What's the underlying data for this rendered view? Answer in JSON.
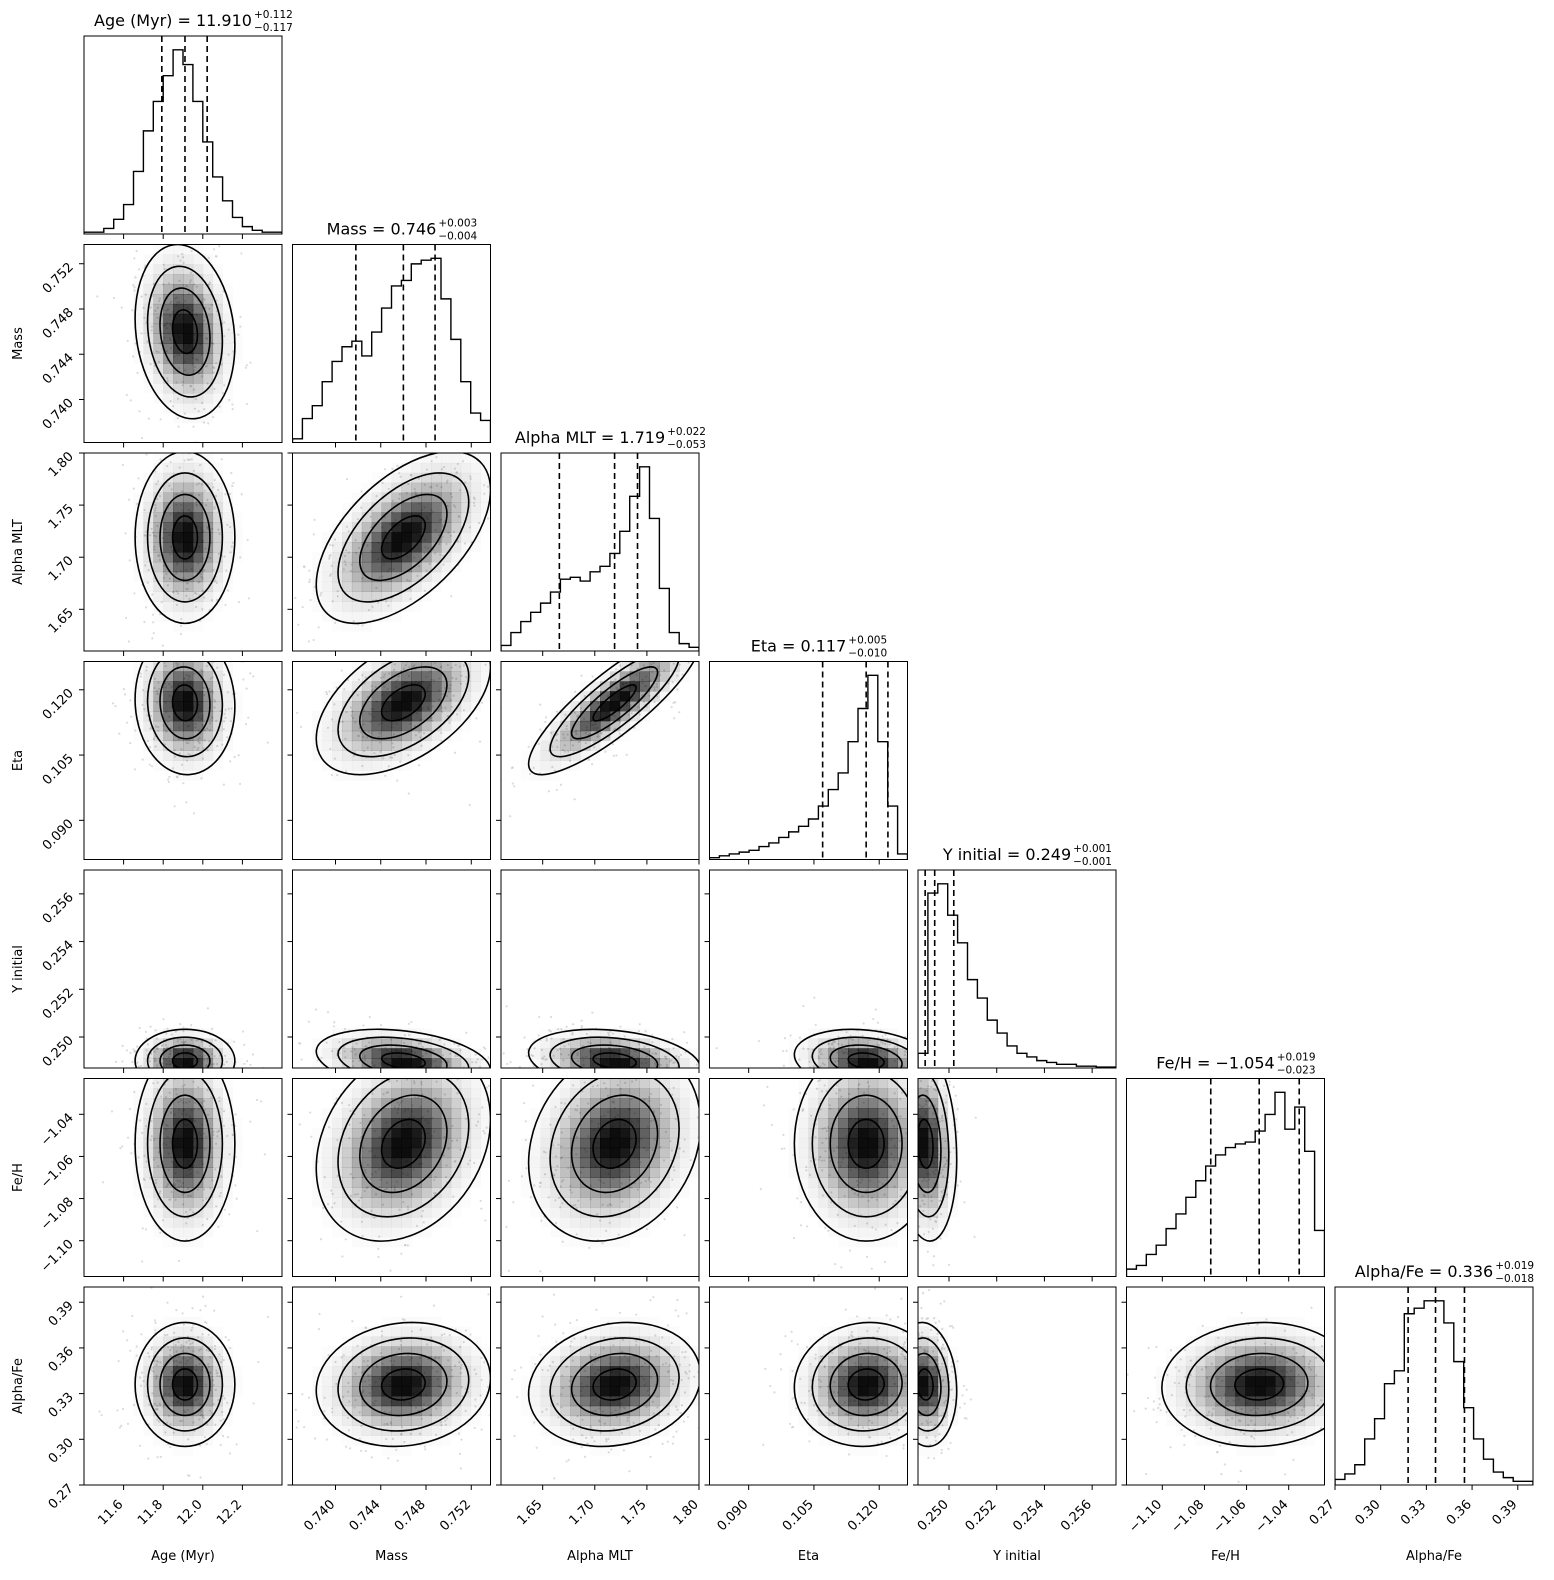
{
  "chart_data": {
    "type": "corner",
    "parameters": [
      {
        "name": "Age (Myr)",
        "range": [
          11.4,
          12.4
        ],
        "ticks": [
          11.6,
          11.8,
          12.0,
          12.2
        ],
        "tick_labels": [
          "11.6",
          "11.8",
          "12.0",
          "12.2"
        ],
        "median": 11.91,
        "quantiles": [
          11.793,
          11.91,
          12.022
        ],
        "title_prefix": "Age (Myr) = 11.910",
        "plus": "+0.112",
        "minus": "−0.117",
        "hist": [
          0.01,
          0.01,
          0.03,
          0.08,
          0.16,
          0.34,
          0.56,
          0.72,
          0.86,
          1.0,
          0.92,
          0.72,
          0.5,
          0.31,
          0.18,
          0.09,
          0.04,
          0.02,
          0.01,
          0.01
        ]
      },
      {
        "name": "Mass",
        "range": [
          0.7362,
          0.7537
        ],
        "ticks": [
          0.736,
          0.74,
          0.744,
          0.748,
          0.752
        ],
        "tick_labels": [
          "0.736",
          "0.740",
          "0.744",
          "0.748",
          "0.752"
        ],
        "median": 0.746,
        "quantiles": [
          0.7418,
          0.746,
          0.7488
        ],
        "title_prefix": "Mass = 0.746",
        "plus": "+0.003",
        "minus": "−0.004",
        "hist": [
          0.02,
          0.13,
          0.2,
          0.33,
          0.44,
          0.52,
          0.55,
          0.47,
          0.6,
          0.73,
          0.85,
          0.88,
          0.97,
          0.99,
          1.0,
          0.78,
          0.56,
          0.33,
          0.16,
          0.12
        ]
      },
      {
        "name": "Alpha MLT",
        "range": [
          1.61,
          1.8
        ],
        "ticks": [
          1.65,
          1.7,
          1.75,
          1.8
        ],
        "tick_labels": [
          "1.65",
          "1.70",
          "1.75",
          "1.80"
        ],
        "median": 1.719,
        "quantiles": [
          1.666,
          1.719,
          1.741
        ],
        "title_prefix": "Alpha MLT = 1.719",
        "plus": "+0.022",
        "minus": "−0.053",
        "hist": [
          0.03,
          0.1,
          0.16,
          0.21,
          0.26,
          0.32,
          0.39,
          0.4,
          0.38,
          0.43,
          0.46,
          0.53,
          0.65,
          0.84,
          1.0,
          0.72,
          0.34,
          0.1,
          0.04,
          0.02
        ]
      },
      {
        "name": "Eta",
        "range": [
          0.081,
          0.1265
        ],
        "ticks": [
          0.09,
          0.105,
          0.12
        ],
        "tick_labels": [
          "0.090",
          "0.105",
          "0.120"
        ],
        "median": 0.117,
        "quantiles": [
          0.107,
          0.117,
          0.122
        ],
        "title_prefix": "Eta = 0.117",
        "plus": "+0.005",
        "minus": "−0.010",
        "hist": [
          0.01,
          0.02,
          0.03,
          0.04,
          0.05,
          0.07,
          0.09,
          0.12,
          0.15,
          0.18,
          0.22,
          0.29,
          0.38,
          0.47,
          0.64,
          0.82,
          1.0,
          0.64,
          0.29,
          0.03
        ]
      },
      {
        "name": "Y initial",
        "range": [
          0.2487,
          0.257
        ],
        "ticks": [
          0.25,
          0.252,
          0.254,
          0.256
        ],
        "tick_labels": [
          "0.250",
          "0.252",
          "0.254",
          "0.256"
        ],
        "median": 0.249,
        "quantiles": [
          0.249,
          0.2494,
          0.2502
        ],
        "title_prefix": "Y initial = 0.249",
        "plus": "+0.001",
        "minus": "−0.001",
        "hist": [
          0.08,
          0.95,
          1.0,
          0.83,
          0.68,
          0.48,
          0.38,
          0.26,
          0.19,
          0.12,
          0.08,
          0.06,
          0.04,
          0.03,
          0.02,
          0.02,
          0.01,
          0.01,
          0.005,
          0.005
        ]
      },
      {
        "name": "Fe/H",
        "range": [
          -1.117,
          -1.023
        ],
        "ticks": [
          -1.1,
          -1.08,
          -1.06,
          -1.04
        ],
        "tick_labels": [
          "−1.10",
          "−1.08",
          "−1.06",
          "−1.04"
        ],
        "median": -1.054,
        "quantiles": [
          -1.077,
          -1.054,
          -1.035
        ],
        "title_prefix": "Fe/H = −1.054",
        "plus": "+0.019",
        "minus": "−0.023",
        "hist": [
          0.04,
          0.06,
          0.12,
          0.17,
          0.26,
          0.34,
          0.43,
          0.52,
          0.6,
          0.66,
          0.7,
          0.72,
          0.73,
          0.79,
          0.88,
          1.0,
          0.8,
          0.92,
          0.68,
          0.25
        ]
      },
      {
        "name": "Alpha/Fe",
        "range": [
          0.27,
          0.4
        ],
        "ticks": [
          0.27,
          0.3,
          0.33,
          0.36,
          0.39
        ],
        "tick_labels": [
          "0.27",
          "0.30",
          "0.33",
          "0.36",
          "0.39"
        ],
        "median": 0.336,
        "quantiles": [
          0.318,
          0.336,
          0.355
        ],
        "title_prefix": "Alpha/Fe = 0.336",
        "plus": "+0.019",
        "minus": "−0.018",
        "hist": [
          0.03,
          0.06,
          0.11,
          0.25,
          0.36,
          0.55,
          0.62,
          0.93,
          0.96,
          1.0,
          1.0,
          0.88,
          0.67,
          0.42,
          0.25,
          0.14,
          0.07,
          0.04,
          0.02,
          0.02
        ]
      }
    ],
    "correlations": {
      "1_0": -0.15,
      "2_0": 0.0,
      "2_1": 0.55,
      "3_0": -0.05,
      "3_1": 0.5,
      "3_2": 0.85,
      "4_0": 0.0,
      "4_1": -0.3,
      "4_2": -0.25,
      "4_3": -0.2,
      "5_0": 0.0,
      "5_1": 0.25,
      "5_2": 0.2,
      "5_3": 0.0,
      "5_4": -0.15,
      "6_0": 0.0,
      "6_1": 0.1,
      "6_2": 0.15,
      "6_3": 0.05,
      "6_4": -0.1,
      "6_5": 0.05
    },
    "contour_levels_sigma": [
      0.5,
      1.0,
      1.5,
      2.0
    ],
    "colors": {
      "hist": "#000000",
      "contour": "#000000",
      "density": "#000000",
      "points": "#bdbdbd"
    }
  }
}
